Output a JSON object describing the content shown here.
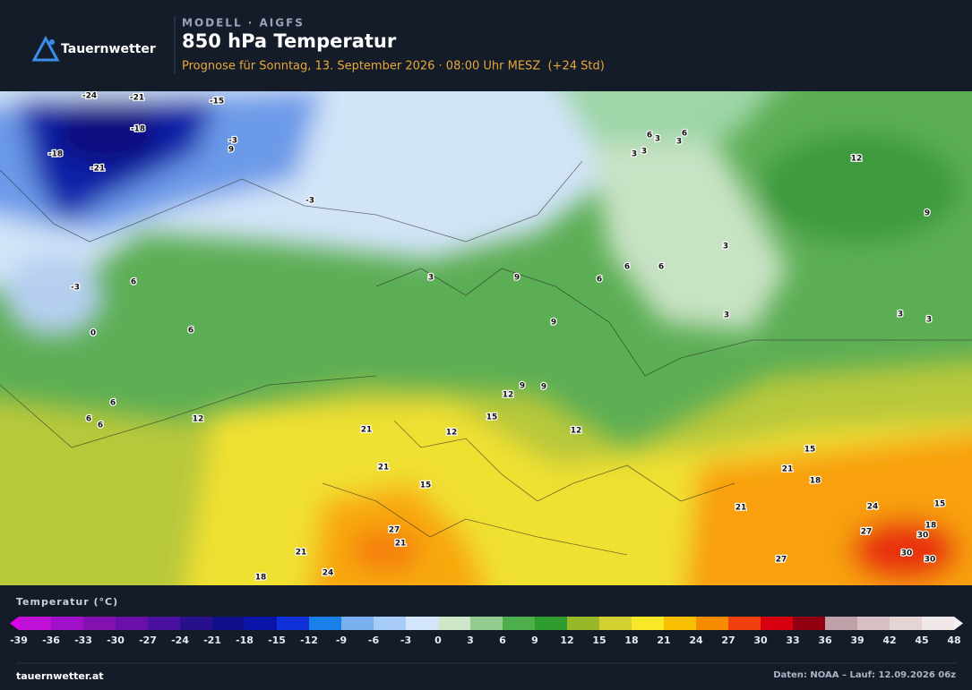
{
  "header": {
    "brand": "Tauernwetter",
    "kicker": "MODELL · AIGFS",
    "title": "850 hPa Temperatur",
    "subtitle": "Prognose für Sonntag, 13. September 2026 · 08:00 Uhr MESZ  (+24 Std)"
  },
  "map": {
    "contour_labels": [
      -24,
      -21,
      -15,
      -18,
      -3,
      9,
      -18,
      -21,
      -3,
      -3,
      6,
      0,
      6,
      3,
      9,
      6,
      6,
      6,
      9,
      3,
      3,
      3,
      3,
      12,
      9,
      6,
      3,
      6,
      3,
      3,
      3,
      6,
      6,
      6,
      12,
      21,
      12,
      15,
      12,
      9,
      9,
      12,
      21,
      15,
      27,
      21,
      21,
      24,
      18,
      15,
      21,
      18,
      21,
      24,
      27,
      15,
      18,
      30,
      30,
      30,
      27
    ]
  },
  "legend": {
    "title": "Temperatur (°C)",
    "ticks": [
      -39,
      -36,
      -33,
      -30,
      -27,
      -24,
      -21,
      -18,
      -15,
      -12,
      -9,
      -6,
      -3,
      0,
      3,
      6,
      9,
      12,
      15,
      18,
      21,
      24,
      27,
      30,
      33,
      36,
      39,
      42,
      45,
      48
    ],
    "colors": [
      "#c010d8",
      "#a010c8",
      "#8510b0",
      "#6a10a8",
      "#4a10a0",
      "#28108c",
      "#10108a",
      "#0a14a8",
      "#1030d8",
      "#1880e8",
      "#78b0f0",
      "#a8ccf8",
      "#d4e6fc",
      "#cfe6c8",
      "#94cc90",
      "#4caf4c",
      "#2e9c2e",
      "#98b828",
      "#d4d030",
      "#f8e828",
      "#f8c000",
      "#f88c00",
      "#f04010",
      "#d80010",
      "#900010",
      "#c0a0a8",
      "#d8c0c4",
      "#e4d4d4",
      "#f0e8e8"
    ],
    "under_color": "#e000f0",
    "over_color": "#f6f0f0"
  },
  "footer": {
    "site": "tauernwetter.at",
    "source": "Daten: NOAA – Lauf: 12.09.2026 06z"
  }
}
